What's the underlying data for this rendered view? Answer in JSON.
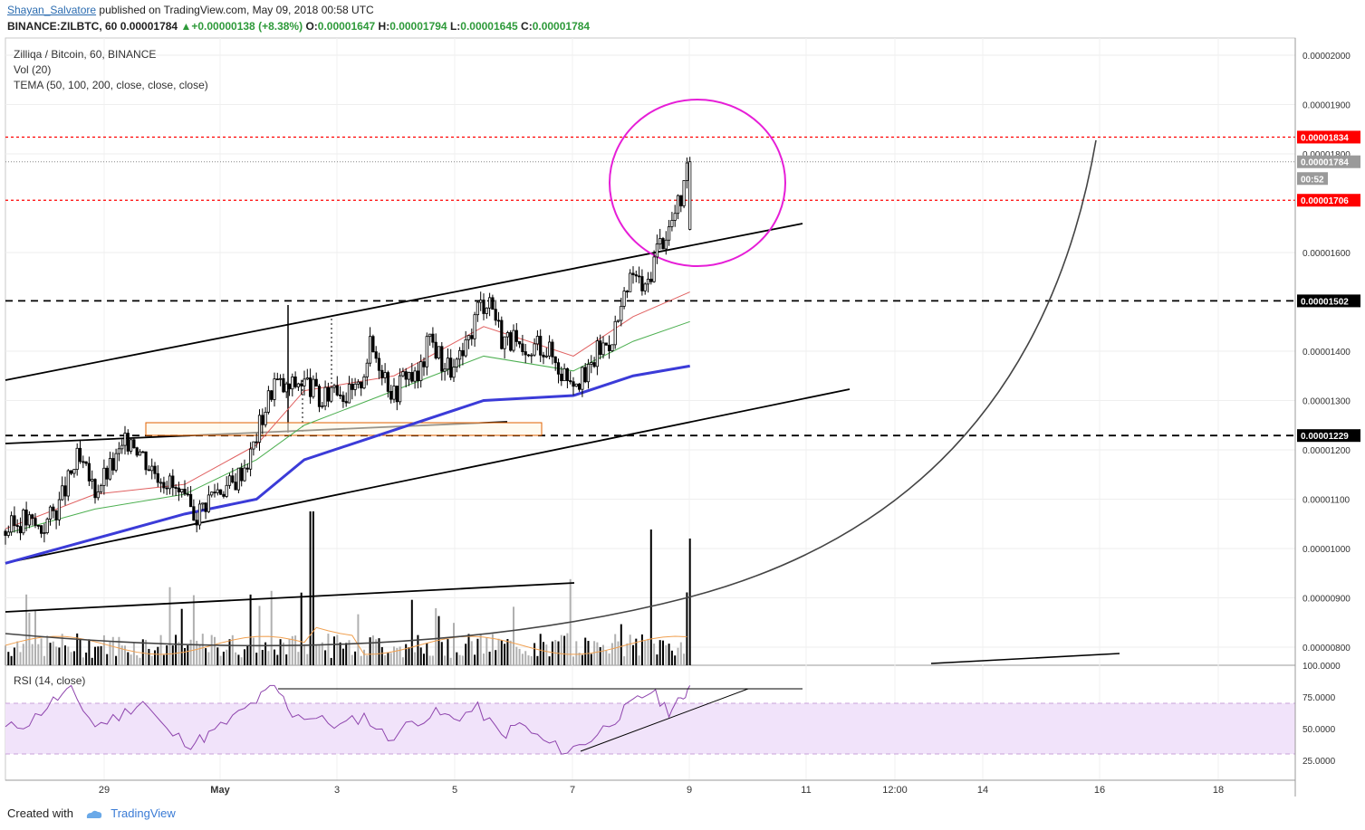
{
  "header": {
    "author": "Shayan_Salvatore",
    "published": "published on TradingView.com, May 09, 2018 00:58 UTC",
    "symbol": "BINANCE:ZILBTC, 60",
    "last": "0.00001784",
    "change": "+0.00000138 (+8.38%)",
    "o_label": "O:",
    "o": "0.00001647",
    "h_label": "H:",
    "h": "0.00001794",
    "l_label": "L:",
    "l": "0.00001645",
    "c_label": "C:",
    "c": "0.00001784"
  },
  "legend": {
    "line1": "Zilliqa / Bitcoin, 60, BINANCE",
    "line2": "Vol (20)",
    "line3": "TEMA (50, 100, 200, close, close, close)"
  },
  "rsi": {
    "title": "RSI (14, close)"
  },
  "footer": {
    "created": "Created with",
    "brand": "TradingView"
  },
  "colors": {
    "candle": "#000000",
    "ema_fast": "#e06060",
    "ema_mid": "#4caf50",
    "ema_slow": "#3b3bd8",
    "resistance": "#ff0000",
    "circle": "#e61ed7",
    "rsi_line": "#8e44ad",
    "rsi_band": "#f1e3fa",
    "volume": "#b0b0b0",
    "volume_ma": "#f0a050"
  },
  "chart_data": {
    "type": "candlestick",
    "price_axis": {
      "ticks": [
        "0.00002000",
        "0.00001900",
        "0.00001800",
        "0.00001600",
        "0.00001400",
        "0.00001300",
        "0.00001200",
        "0.00001100",
        "0.00001000",
        "0.00000900",
        "0.00000800"
      ],
      "tick_values": [
        2e-05,
        1.9e-05,
        1.8e-05,
        1.6e-05,
        1.4e-05,
        1.3e-05,
        1.2e-05,
        1.1e-05,
        1e-05,
        9e-06,
        8e-06
      ]
    },
    "rsi_axis": {
      "ticks": [
        "100.0000",
        "75.0000",
        "50.0000",
        "25.0000"
      ],
      "tick_values": [
        100,
        75,
        50,
        25
      ],
      "band": [
        30,
        70
      ]
    },
    "time_axis": {
      "labels": [
        "29",
        "May",
        "3",
        "5",
        "7",
        "9",
        "11",
        "12:00",
        "14",
        "16",
        "18"
      ]
    },
    "price_labels": [
      {
        "text": "0.00001834",
        "value": 1.834e-05,
        "style": "red"
      },
      {
        "text": "0.00001784",
        "value": 1.784e-05,
        "style": "grey"
      },
      {
        "text": "00:52",
        "value": 1.75e-05,
        "style": "grey"
      },
      {
        "text": "0.00001706",
        "value": 1.706e-05,
        "style": "red"
      },
      {
        "text": "0.00001502",
        "value": 1.502e-05,
        "style": "black"
      },
      {
        "text": "0.00001229",
        "value": 1.229e-05,
        "style": "black"
      }
    ],
    "horizontal_levels": [
      {
        "value": 1.834e-05,
        "style": "red-dashed"
      },
      {
        "value": 1.706e-05,
        "style": "red-dashed"
      },
      {
        "value": 1.502e-05,
        "style": "black-dashed"
      },
      {
        "value": 1.229e-05,
        "style": "black-dashed"
      }
    ],
    "price_path": [
      [
        0,
        1.035e-05
      ],
      [
        6,
        1.06e-05
      ],
      [
        12,
        1.04e-05
      ],
      [
        18,
        1.09e-05
      ],
      [
        24,
        1.18e-05
      ],
      [
        30,
        1.12e-05
      ],
      [
        36,
        1.17e-05
      ],
      [
        42,
        1.23e-05
      ],
      [
        48,
        1.17e-05
      ],
      [
        54,
        1.14e-05
      ],
      [
        60,
        1.09e-05
      ],
      [
        64,
        1.07e-05
      ],
      [
        70,
        1.12e-05
      ],
      [
        76,
        1.13e-05
      ],
      [
        82,
        1.19e-05
      ],
      [
        86,
        1.27e-05
      ],
      [
        90,
        1.34e-05
      ],
      [
        94,
        1.32e-05
      ],
      [
        98,
        1.34e-05
      ],
      [
        102,
        1.33e-05
      ],
      [
        106,
        1.29e-05
      ],
      [
        110,
        1.34e-05
      ],
      [
        114,
        1.31e-05
      ],
      [
        118,
        1.32e-05
      ],
      [
        122,
        1.41e-05
      ],
      [
        126,
        1.37e-05
      ],
      [
        130,
        1.31e-05
      ],
      [
        134,
        1.36e-05
      ],
      [
        138,
        1.34e-05
      ],
      [
        142,
        1.43e-05
      ],
      [
        146,
        1.38e-05
      ],
      [
        150,
        1.36e-05
      ],
      [
        154,
        1.4e-05
      ],
      [
        158,
        1.49e-05
      ],
      [
        162,
        1.51e-05
      ],
      [
        166,
        1.43e-05
      ],
      [
        170,
        1.42e-05
      ],
      [
        174,
        1.37e-05
      ],
      [
        178,
        1.42e-05
      ],
      [
        182,
        1.4e-05
      ],
      [
        186,
        1.36e-05
      ],
      [
        190,
        1.35e-05
      ],
      [
        194,
        1.34e-05
      ],
      [
        198,
        1.4e-05
      ],
      [
        202,
        1.42e-05
      ],
      [
        206,
        1.48e-05
      ],
      [
        210,
        1.56e-05
      ],
      [
        214,
        1.52e-05
      ],
      [
        218,
        1.61e-05
      ],
      [
        222,
        1.65e-05
      ],
      [
        226,
        1.71e-05
      ],
      [
        229,
        1.78e-05
      ]
    ],
    "ema_fast": [
      [
        0,
        1.04e-05
      ],
      [
        30,
        1.11e-05
      ],
      [
        60,
        1.13e-05
      ],
      [
        84,
        1.21e-05
      ],
      [
        100,
        1.32e-05
      ],
      [
        130,
        1.35e-05
      ],
      [
        160,
        1.45e-05
      ],
      [
        190,
        1.39e-05
      ],
      [
        210,
        1.47e-05
      ],
      [
        229,
        1.52e-05
      ]
    ],
    "ema_mid": [
      [
        0,
        1.03e-05
      ],
      [
        30,
        1.08e-05
      ],
      [
        60,
        1.11e-05
      ],
      [
        84,
        1.18e-05
      ],
      [
        100,
        1.25e-05
      ],
      [
        130,
        1.32e-05
      ],
      [
        160,
        1.39e-05
      ],
      [
        190,
        1.36e-05
      ],
      [
        210,
        1.42e-05
      ],
      [
        229,
        1.46e-05
      ]
    ],
    "ema_slow": [
      [
        0,
        9.7e-06
      ],
      [
        30,
        1.02e-05
      ],
      [
        60,
        1.07e-05
      ],
      [
        84,
        1.1e-05
      ],
      [
        100,
        1.18e-05
      ],
      [
        130,
        1.24e-05
      ],
      [
        160,
        1.3e-05
      ],
      [
        190,
        1.31e-05
      ],
      [
        210,
        1.35e-05
      ],
      [
        229,
        1.37e-05
      ]
    ],
    "rsi_path": [
      [
        0,
        50
      ],
      [
        8,
        55
      ],
      [
        16,
        72
      ],
      [
        22,
        80
      ],
      [
        30,
        52
      ],
      [
        38,
        60
      ],
      [
        46,
        72
      ],
      [
        54,
        48
      ],
      [
        62,
        38
      ],
      [
        68,
        45
      ],
      [
        76,
        58
      ],
      [
        84,
        72
      ],
      [
        90,
        84
      ],
      [
        96,
        62
      ],
      [
        104,
        58
      ],
      [
        112,
        52
      ],
      [
        120,
        60
      ],
      [
        128,
        42
      ],
      [
        136,
        55
      ],
      [
        144,
        62
      ],
      [
        150,
        58
      ],
      [
        158,
        66
      ],
      [
        166,
        44
      ],
      [
        172,
        54
      ],
      [
        180,
        40
      ],
      [
        188,
        32
      ],
      [
        196,
        42
      ],
      [
        204,
        58
      ],
      [
        210,
        70
      ],
      [
        216,
        80
      ],
      [
        222,
        64
      ],
      [
        226,
        72
      ],
      [
        229,
        84
      ]
    ],
    "xlabel": "",
    "ylabel": ""
  }
}
